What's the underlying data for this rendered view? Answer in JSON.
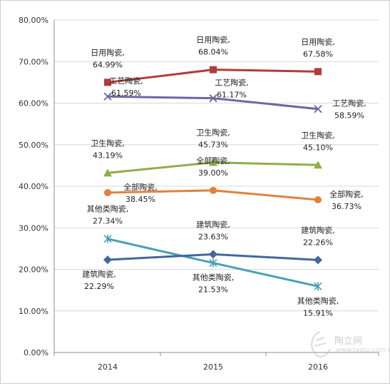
{
  "chart_data": {
    "type": "line",
    "categories": [
      "2014",
      "2015",
      "2016"
    ],
    "ylim": [
      0,
      80
    ],
    "y_ticks": [
      "0.00%",
      "10.00%",
      "20.00%",
      "30.00%",
      "40.00%",
      "50.00%",
      "60.00%",
      "70.00%",
      "80.00%"
    ],
    "grid": true,
    "series": [
      {
        "name": "日用陶瓷",
        "color": "#b23b3b",
        "marker": "square",
        "values": [
          64.99,
          68.04,
          67.58
        ],
        "labels": [
          "64.99%",
          "68.04%",
          "67.58%"
        ]
      },
      {
        "name": "工艺陶瓷",
        "color": "#7264a3",
        "marker": "x",
        "values": [
          61.59,
          61.17,
          58.59
        ],
        "labels": [
          "61.59%",
          "61.17%",
          "58.59%"
        ]
      },
      {
        "name": "卫生陶瓷",
        "color": "#8fae4a",
        "marker": "triangle",
        "values": [
          43.19,
          45.73,
          45.1
        ],
        "labels": [
          "43.19%",
          "45.73%",
          "45.10%"
        ]
      },
      {
        "name": "全部陶瓷",
        "color": "#e0823c",
        "marker": "circle",
        "values": [
          38.45,
          39.0,
          36.73
        ],
        "labels": [
          "38.45%",
          "39.00%",
          "36.73%"
        ]
      },
      {
        "name": "其他类陶瓷",
        "color": "#4aa1b5",
        "marker": "star",
        "values": [
          27.34,
          21.53,
          15.91
        ],
        "labels": [
          "27.34%",
          "21.53%",
          "15.91%"
        ]
      },
      {
        "name": "建筑陶瓷",
        "color": "#44679c",
        "marker": "diamond",
        "values": [
          22.29,
          23.63,
          22.26
        ],
        "labels": [
          "22.29%",
          "23.63%",
          "22.26%"
        ]
      }
    ]
  },
  "watermark": {
    "text": "陶立网",
    "sub": "www.taotu.com.cn"
  }
}
